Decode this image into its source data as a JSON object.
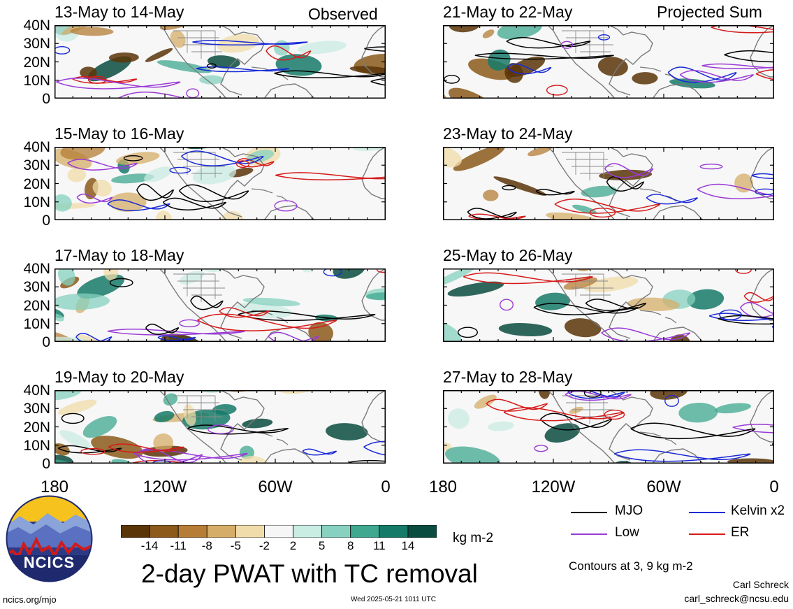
{
  "header": {
    "left_tag": "Observed",
    "right_tag": "Projected Sum"
  },
  "panels": [
    {
      "title": "13-May to 14-May",
      "column": "left",
      "row": 0
    },
    {
      "title": "15-May to 16-May",
      "column": "left",
      "row": 1
    },
    {
      "title": "17-May to 18-May",
      "column": "left",
      "row": 2
    },
    {
      "title": "19-May to 20-May",
      "column": "left",
      "row": 3
    },
    {
      "title": "21-May to 22-May",
      "column": "right",
      "row": 0
    },
    {
      "title": "23-May to 24-May",
      "column": "right",
      "row": 1
    },
    {
      "title": "25-May to 26-May",
      "column": "right",
      "row": 2
    },
    {
      "title": "27-May to 28-May",
      "column": "right",
      "row": 3
    }
  ],
  "axes": {
    "y_labels": [
      "40N",
      "30N",
      "20N",
      "10N",
      "0"
    ],
    "x_labels": [
      "180",
      "120W",
      "60W",
      "0"
    ]
  },
  "colorbar": {
    "ticks": [
      "-14",
      "-11",
      "-8",
      "-5",
      "-2",
      "2",
      "5",
      "8",
      "11",
      "14"
    ],
    "colors": [
      "#5a3508",
      "#8c5a1b",
      "#b57d35",
      "#d6ad68",
      "#f0dcaa",
      "#f6f6f6",
      "#c9ece3",
      "#86d1bf",
      "#3fa88f",
      "#167a68",
      "#0a4c3f"
    ],
    "units": "kg m-2"
  },
  "legend": {
    "items": [
      {
        "label": "MJO",
        "color": "#000000"
      },
      {
        "label": "Kelvin x2",
        "color": "#1a2ad6"
      },
      {
        "label": "Low",
        "color": "#9a3ad6"
      },
      {
        "label": "ER",
        "color": "#d61a1a"
      }
    ],
    "contour_note": "Contours at 3, 9 kg m-2"
  },
  "title": "2-day PWAT with TC removal",
  "logo": {
    "text": "NCICS"
  },
  "footer": {
    "url": "ncics.org/mjo",
    "timestamp": "Wed 2025-05-21 1011 UTC",
    "author": "Carl Schreck",
    "email": "carl_schreck@ncsu.edu"
  }
}
